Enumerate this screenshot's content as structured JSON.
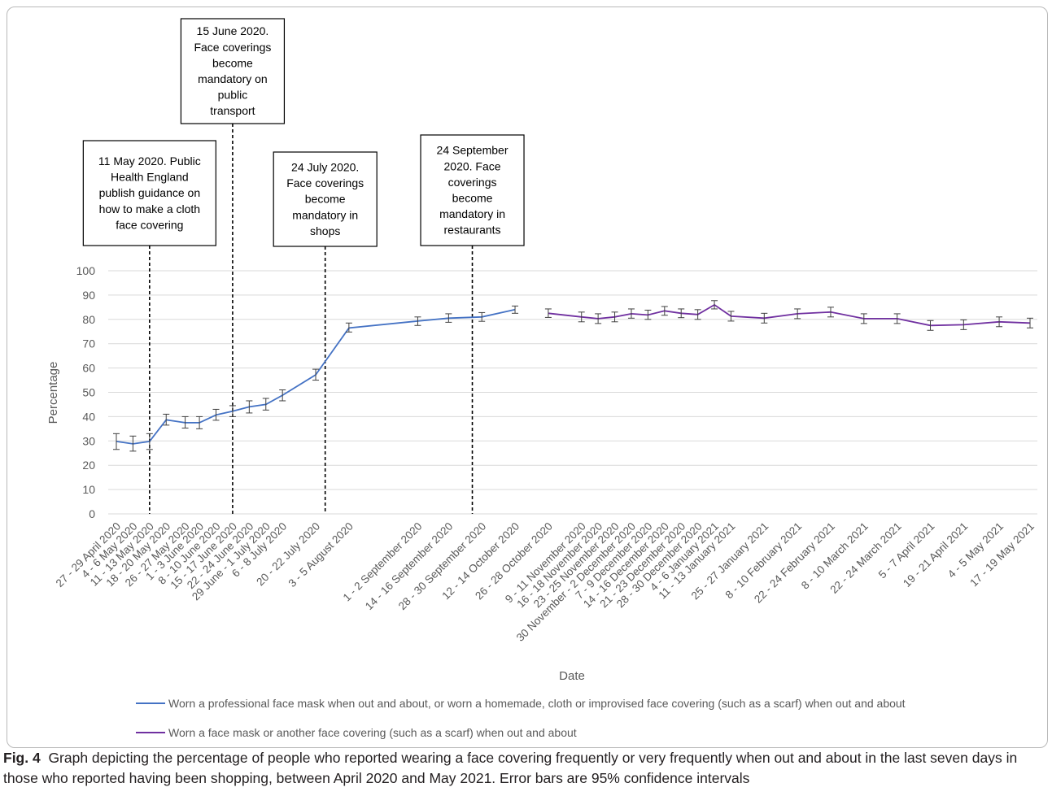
{
  "caption": {
    "label": "Fig. 4",
    "text": "Graph depicting the percentage of people who reported wearing a face covering frequently or very frequently when out and about in the last seven days in those who reported having been shopping, between April 2020 and May 2021. Error bars are 95% confidence intervals"
  },
  "chart_data": {
    "type": "line",
    "xlabel": "Date",
    "ylabel": "Percentage",
    "ylim": [
      0,
      100
    ],
    "yticks": [
      0,
      10,
      20,
      30,
      40,
      50,
      60,
      70,
      80,
      90,
      100
    ],
    "grid": true,
    "legend_position": "bottom",
    "categories": [
      "27 - 29 April 2020",
      "4 - 6 May 2020",
      "11 - 13 May 2020",
      "18 - 20 May 2020",
      "26 - 27 May 2020",
      "1 - 3 June 2020",
      "8 - 10 June 2020",
      "15 - 17 June 2020",
      "22 - 24 June 2020",
      "29 June - 1 July 2020",
      "6 - 8 July 2020",
      "20 - 22 July 2020",
      "3 - 5 August 2020",
      "1 - 2 September 2020",
      "14 - 16 September 2020",
      "28 - 30 September 2020",
      "12 - 14 October 2020",
      "26 - 28 October 2020",
      "9 - 11 November 2020",
      "16 - 18 November 2020",
      "23 - 25 November 2020",
      "30 November - 2 December 2020",
      "7 - 9 December 2020",
      "14 - 16 December 2020",
      "21 - 23 December 2020",
      "28 - 30 December 2020",
      "4 - 6 January 2021",
      "11 - 13 January 2021",
      "25 - 27 January 2021",
      "8 - 10 February 2021",
      "22 - 24 February 2021",
      "8 - 10 March 2021",
      "22 - 24 March 2021",
      "5 - 7 April 2021",
      "19 - 21 April 2021",
      "4 - 5 May 2021",
      "17 - 19 May 2021"
    ],
    "series": [
      {
        "name": "Worn a professional face mask when out and about, or worn a homemade, cloth or improvised face covering (such as a scarf) when out and about",
        "color": "#4472c4",
        "points": [
          {
            "x": "27 - 29 April 2020",
            "y": 29.8,
            "lo": 26.5,
            "hi": 33.0
          },
          {
            "x": "4 - 6 May 2020",
            "y": 28.8,
            "lo": 25.8,
            "hi": 32.0
          },
          {
            "x": "11 - 13 May 2020",
            "y": 29.8,
            "lo": 26.5,
            "hi": 33.0
          },
          {
            "x": "18 - 20 May 2020",
            "y": 38.7,
            "lo": 36.5,
            "hi": 41.0
          },
          {
            "x": "26 - 27 May 2020",
            "y": 37.5,
            "lo": 35.3,
            "hi": 40.0
          },
          {
            "x": "1 - 3 June 2020",
            "y": 37.5,
            "lo": 35.0,
            "hi": 40.0
          },
          {
            "x": "8 - 10 June 2020",
            "y": 40.7,
            "lo": 38.5,
            "hi": 43.0
          },
          {
            "x": "15 - 17 June 2020",
            "y": 42.2,
            "lo": 40.0,
            "hi": 44.5
          },
          {
            "x": "22 - 24 June 2020",
            "y": 44.0,
            "lo": 41.5,
            "hi": 46.5
          },
          {
            "x": "29 June - 1 July 2020",
            "y": 45.0,
            "lo": 42.7,
            "hi": 47.5
          },
          {
            "x": "6 - 8 July 2020",
            "y": 48.8,
            "lo": 46.5,
            "hi": 51.0
          },
          {
            "x": "20 - 22 July 2020",
            "y": 57.2,
            "lo": 55.0,
            "hi": 59.5
          },
          {
            "x": "3 - 5 August 2020",
            "y": 76.5,
            "lo": 74.8,
            "hi": 78.5
          },
          {
            "x": "1 - 2 September 2020",
            "y": 79.3,
            "lo": 77.5,
            "hi": 81.0
          },
          {
            "x": "14 - 16 September 2020",
            "y": 80.5,
            "lo": 78.8,
            "hi": 82.3
          },
          {
            "x": "28 - 30 September 2020",
            "y": 81.0,
            "lo": 79.2,
            "hi": 82.8
          },
          {
            "x": "12 - 14 October 2020",
            "y": 84.0,
            "lo": 82.5,
            "hi": 85.5
          }
        ]
      },
      {
        "name": "Worn a face mask or another face covering (such as a scarf) when out and about",
        "color": "#7030a0",
        "points": [
          {
            "x": "26 - 28 October 2020",
            "y": 82.5,
            "lo": 80.8,
            "hi": 84.3
          },
          {
            "x": "9 - 11 November 2020",
            "y": 81.0,
            "lo": 79.0,
            "hi": 83.0
          },
          {
            "x": "16 - 18 November 2020",
            "y": 80.3,
            "lo": 78.3,
            "hi": 82.3
          },
          {
            "x": "23 - 25 November 2020",
            "y": 81.0,
            "lo": 79.0,
            "hi": 83.0
          },
          {
            "x": "30 November - 2 December 2020",
            "y": 82.3,
            "lo": 80.5,
            "hi": 84.3
          },
          {
            "x": "7 - 9 December 2020",
            "y": 81.8,
            "lo": 80.0,
            "hi": 83.8
          },
          {
            "x": "14 - 16 December 2020",
            "y": 83.5,
            "lo": 81.7,
            "hi": 85.3
          },
          {
            "x": "21 - 23 December 2020",
            "y": 82.5,
            "lo": 80.7,
            "hi": 84.3
          },
          {
            "x": "28 - 30 December 2020",
            "y": 82.0,
            "lo": 80.0,
            "hi": 84.0
          },
          {
            "x": "4 - 6 January 2021",
            "y": 86.0,
            "lo": 84.3,
            "hi": 87.7
          },
          {
            "x": "11 - 13 January 2021",
            "y": 81.3,
            "lo": 79.3,
            "hi": 83.3
          },
          {
            "x": "25 - 27 January 2021",
            "y": 80.5,
            "lo": 78.5,
            "hi": 82.5
          },
          {
            "x": "8 - 10 February 2021",
            "y": 82.3,
            "lo": 80.3,
            "hi": 84.3
          },
          {
            "x": "22 - 24 February 2021",
            "y": 83.0,
            "lo": 81.0,
            "hi": 85.0
          },
          {
            "x": "8 - 10 March 2021",
            "y": 80.3,
            "lo": 78.3,
            "hi": 82.3
          },
          {
            "x": "22 - 24 March 2021",
            "y": 80.3,
            "lo": 78.3,
            "hi": 82.3
          },
          {
            "x": "5 - 7 April 2021",
            "y": 77.5,
            "lo": 75.5,
            "hi": 79.5
          },
          {
            "x": "19 - 21 April 2021",
            "y": 77.8,
            "lo": 75.8,
            "hi": 79.8
          },
          {
            "x": "4 - 5 May 2021",
            "y": 79.0,
            "lo": 77.0,
            "hi": 81.0
          },
          {
            "x": "17 - 19 May 2021",
            "y": 78.5,
            "lo": 76.5,
            "hi": 80.5
          }
        ]
      }
    ],
    "annotations": [
      {
        "at": "11 - 13 May 2020",
        "date": "2020-05-11",
        "lines": [
          "11 May 2020. Public",
          "Health England",
          "publish guidance on",
          "how to make a cloth",
          "face covering"
        ]
      },
      {
        "at": "15 - 17 June 2020",
        "date": "2020-06-15",
        "lines": [
          "15 June 2020.",
          "Face coverings",
          "become",
          "mandatory on",
          "public",
          "transport"
        ]
      },
      {
        "at": "20 - 22 July 2020",
        "date": "2020-07-24",
        "lines": [
          "24 July 2020.",
          "Face coverings",
          "become",
          "mandatory in",
          "shops"
        ]
      },
      {
        "at": "28 - 30 September 2020",
        "date": "2020-09-24",
        "lines": [
          "24 September",
          "2020. Face",
          "coverings",
          "become",
          "mandatory in",
          "restaurants"
        ]
      }
    ]
  }
}
